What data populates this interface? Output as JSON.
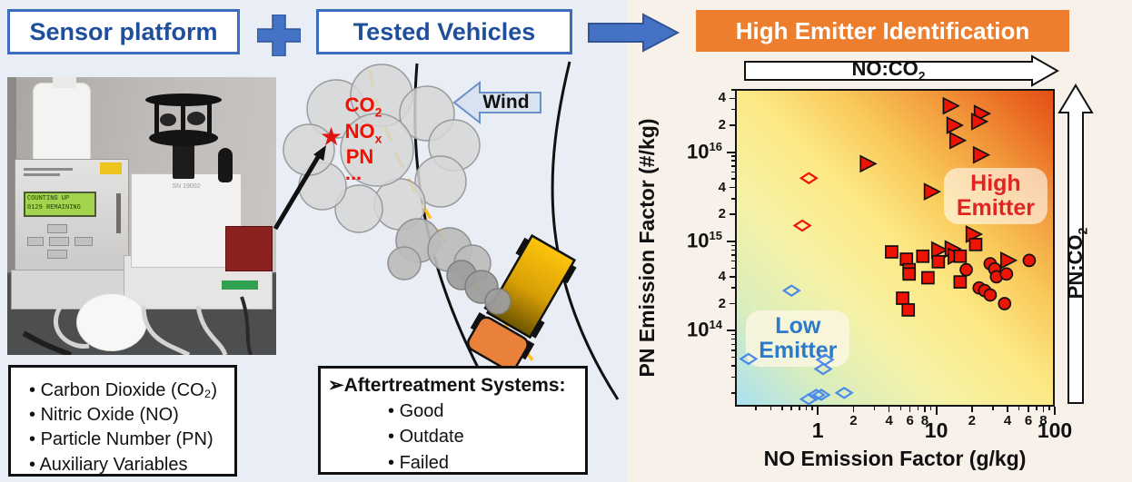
{
  "headers": {
    "sensor": "Sensor platform",
    "vehicles": "Tested Vehicles",
    "identification": "High Emitter Identification",
    "accent_blue": "#4472c4",
    "header_text_blue": "#1f4e9b",
    "banner_orange": "#ec7e2d"
  },
  "wind": {
    "label": "Wind"
  },
  "plume": {
    "co2_base": "CO",
    "co2_sub": "2",
    "nox_base": "NO",
    "nox_sub": "x",
    "pn": "PN",
    "dots": "...",
    "star_icon": "★",
    "text_color": "#ee1100"
  },
  "sensor_list": {
    "items": [
      "Carbon Dioxide (CO₂)",
      "Nitric Oxide (NO)",
      "Particle Number (PN)",
      "Auxiliary Variables"
    ]
  },
  "aftertreatment": {
    "bullet": "➢",
    "title": "Aftertreatment Systems:",
    "items": [
      "Good",
      "Outdate",
      "Failed"
    ]
  },
  "chart_data": {
    "type": "scatter",
    "title": "High Emitter Identification",
    "xlabel": "NO Emission Factor (g/kg)",
    "ylabel": "PN Emission Factor (#/kg)",
    "xscale": "log",
    "yscale": "log",
    "xlim": [
      0.2,
      100
    ],
    "ylim": [
      14000000000000.0,
      5.1e+16
    ],
    "grid": false,
    "x_ticks": {
      "major": [
        1,
        10,
        100
      ],
      "labeled_minor": [
        2,
        4,
        6,
        8,
        20,
        40,
        60,
        80
      ],
      "minor": [
        0.3,
        0.4,
        0.5,
        0.6,
        0.7,
        0.8,
        0.9,
        3,
        5,
        7,
        9,
        30,
        50,
        70,
        90
      ]
    },
    "y_ticks": {
      "major": [
        100000000000000.0,
        1000000000000000.0,
        1e+16
      ],
      "labeled_minor": [
        200000000000000.0,
        400000000000000.0,
        2000000000000000.0,
        4000000000000000.0,
        2e+16,
        4e+16
      ],
      "minor": [
        20000000000000.0,
        30000000000000.0,
        40000000000000.0,
        50000000000000.0,
        60000000000000.0,
        70000000000000.0,
        80000000000000.0,
        90000000000000.0,
        300000000000000.0,
        500000000000000.0,
        600000000000000.0,
        700000000000000.0,
        800000000000000.0,
        900000000000000.0,
        3000000000000000.0,
        5000000000000000.0,
        6000000000000000.0,
        7000000000000000.0,
        8000000000000000.0,
        9000000000000000.0,
        3e+16,
        5e+16
      ]
    },
    "background_gradient": [
      "#a9e1f1",
      "#f6f2a6",
      "#fde884",
      "#f29a3c",
      "#e44f16"
    ],
    "marker_colors": {
      "red": "#ee1404",
      "blue": "#4c8be8",
      "outline": "#111111"
    },
    "gradient_axis_labels": {
      "x_base": "NO:CO",
      "x_sub": "2",
      "y_base": "PN:CO",
      "y_sub": "2"
    },
    "annotations": [
      {
        "id": "high-emitter",
        "lines": [
          "High",
          "Emitter"
        ],
        "x": 31.7,
        "y": 3200000000000000.0,
        "color": "#e32222",
        "bg": "rgba(255,252,246,0.62)"
      },
      {
        "id": "low-emitter",
        "lines": [
          "Low",
          "Emitter"
        ],
        "x": 0.68,
        "y": 81000000000000.0,
        "color": "#2b7bc8",
        "bg": "rgba(250,246,224,0.85)"
      }
    ],
    "series": [
      {
        "name": "red-triangles",
        "marker": "triangle-right",
        "fill": "#ee1404",
        "points": [
          [
            13.0,
            3.3e+16
          ],
          [
            23.8,
            2.7e+16
          ],
          [
            22.6,
            2.2e+16
          ],
          [
            14.0,
            2e+16
          ],
          [
            14.8,
            1.35e+16
          ],
          [
            23.4,
            9300000000000000.0
          ],
          [
            2.6,
            7400000000000000.0
          ],
          [
            9.0,
            3600000000000000.0
          ],
          [
            20.3,
            1200000000000000.0
          ],
          [
            10.4,
            800000000000000.0
          ],
          [
            13.5,
            820000000000000.0
          ],
          [
            14.3,
            680000000000000.0
          ],
          [
            39.8,
            610000000000000.0
          ]
        ]
      },
      {
        "name": "red-squares",
        "marker": "square",
        "fill": "#ee1404",
        "points": [
          [
            4.2,
            760000000000000.0
          ],
          [
            5.6,
            630000000000000.0
          ],
          [
            7.7,
            680000000000000.0
          ],
          [
            10.4,
            590000000000000.0
          ],
          [
            5.9,
            480000000000000.0
          ],
          [
            5.9,
            430000000000000.0
          ],
          [
            8.5,
            390000000000000.0
          ],
          [
            15.9,
            680000000000000.0
          ],
          [
            21.5,
            920000000000000.0
          ],
          [
            15.9,
            350000000000000.0
          ],
          [
            5.2,
            230000000000000.0
          ],
          [
            5.8,
            170000000000000.0
          ]
        ]
      },
      {
        "name": "red-circles",
        "marker": "circle",
        "fill": "#ee1404",
        "points": [
          [
            17.9,
            480000000000000.0
          ],
          [
            28.5,
            560000000000000.0
          ],
          [
            31.1,
            490000000000000.0
          ],
          [
            32.2,
            400000000000000.0
          ],
          [
            39.1,
            430000000000000.0
          ],
          [
            60.9,
            610000000000000.0
          ],
          [
            23.0,
            300000000000000.0
          ],
          [
            25.6,
            280000000000000.0
          ],
          [
            28.5,
            250000000000000.0
          ],
          [
            37.7,
            200000000000000.0
          ]
        ]
      },
      {
        "name": "red-open-diamonds",
        "marker": "diamond-open",
        "stroke": "#ee1404",
        "points": [
          [
            0.84,
            5100000000000000.0
          ],
          [
            0.74,
            1500000000000000.0
          ]
        ]
      },
      {
        "name": "blue-open-diamonds",
        "marker": "diamond-open",
        "stroke": "#4c8be8",
        "points": [
          [
            0.6,
            280000000000000.0
          ],
          [
            0.26,
            48000000000000.0
          ],
          [
            1.15,
            47000000000000.0
          ],
          [
            1.11,
            37000000000000.0
          ],
          [
            1.67,
            20000000000000.0
          ],
          [
            0.84,
            17000000000000.0
          ],
          [
            0.97,
            19000000000000.0
          ],
          [
            1.07,
            19000000000000.0
          ]
        ]
      }
    ]
  }
}
